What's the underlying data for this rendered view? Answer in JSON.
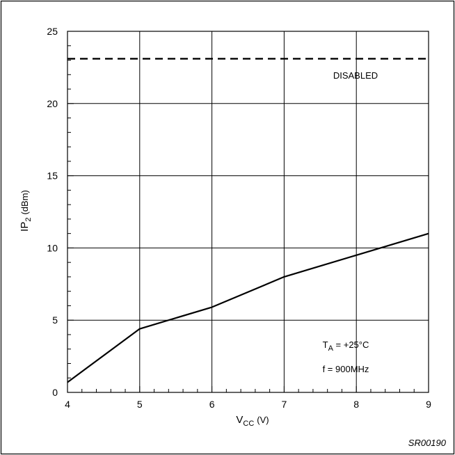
{
  "chart_data": {
    "type": "line",
    "title": "",
    "xlabel": {
      "main": "V",
      "sub": "CC",
      "unit": "(V)"
    },
    "ylabel": {
      "main": "IP",
      "sub": "2",
      "unit": "(dBm)"
    },
    "xlim": [
      4,
      9
    ],
    "ylim": [
      0,
      25
    ],
    "x_ticks": [
      4,
      5,
      6,
      7,
      8,
      9
    ],
    "y_ticks": [
      0,
      5,
      10,
      15,
      20,
      25
    ],
    "x_tick_labels": [
      "4",
      "5",
      "6",
      "7",
      "8",
      "9"
    ],
    "y_tick_labels": [
      "0",
      "5",
      "10",
      "15",
      "20",
      "25"
    ],
    "grid": true,
    "series": [
      {
        "style": "solid",
        "x": [
          4,
          5,
          6,
          7,
          8,
          9
        ],
        "y": [
          0.7,
          4.4,
          5.9,
          8.0,
          9.5,
          11.0
        ]
      },
      {
        "name": "DISABLED",
        "style": "dashed",
        "x": [
          4,
          9
        ],
        "y": [
          23.1,
          23.1
        ]
      }
    ],
    "annotations": {
      "temperature": {
        "main": "T",
        "sub": "A",
        "rest": " = +25°C"
      },
      "frequency": "f = 900MHz",
      "figure_code": "SR00190"
    }
  }
}
